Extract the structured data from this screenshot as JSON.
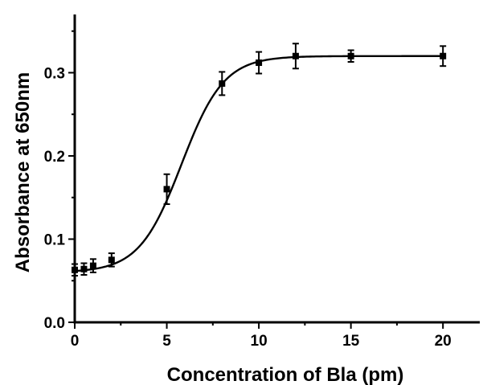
{
  "chart_data": {
    "type": "scatter",
    "title": "",
    "xlabel": "Concentration of Bla (pm)",
    "ylabel": "Absorbance at 650nm",
    "xlim": [
      0,
      22
    ],
    "ylim": [
      0,
      0.37
    ],
    "xticks": [
      0,
      5,
      10,
      15,
      20
    ],
    "xtick_labels": [
      "0",
      "5",
      "10",
      "15",
      "20"
    ],
    "yticks": [
      0.0,
      0.1,
      0.2,
      0.3
    ],
    "ytick_labels": [
      "0.0",
      "0.1",
      "0.2",
      "0.3"
    ],
    "grid": false,
    "legend": "none",
    "series": [
      {
        "x": [
          0,
          0.5,
          1,
          2,
          5,
          8,
          10,
          12,
          15,
          20
        ],
        "y": [
          0.063,
          0.064,
          0.068,
          0.075,
          0.16,
          0.287,
          0.312,
          0.32,
          0.32,
          0.32
        ],
        "error": [
          0.007,
          0.007,
          0.008,
          0.008,
          0.018,
          0.014,
          0.013,
          0.015,
          0.007,
          0.012
        ],
        "marker": "square",
        "fit": "sigmoid"
      }
    ]
  }
}
